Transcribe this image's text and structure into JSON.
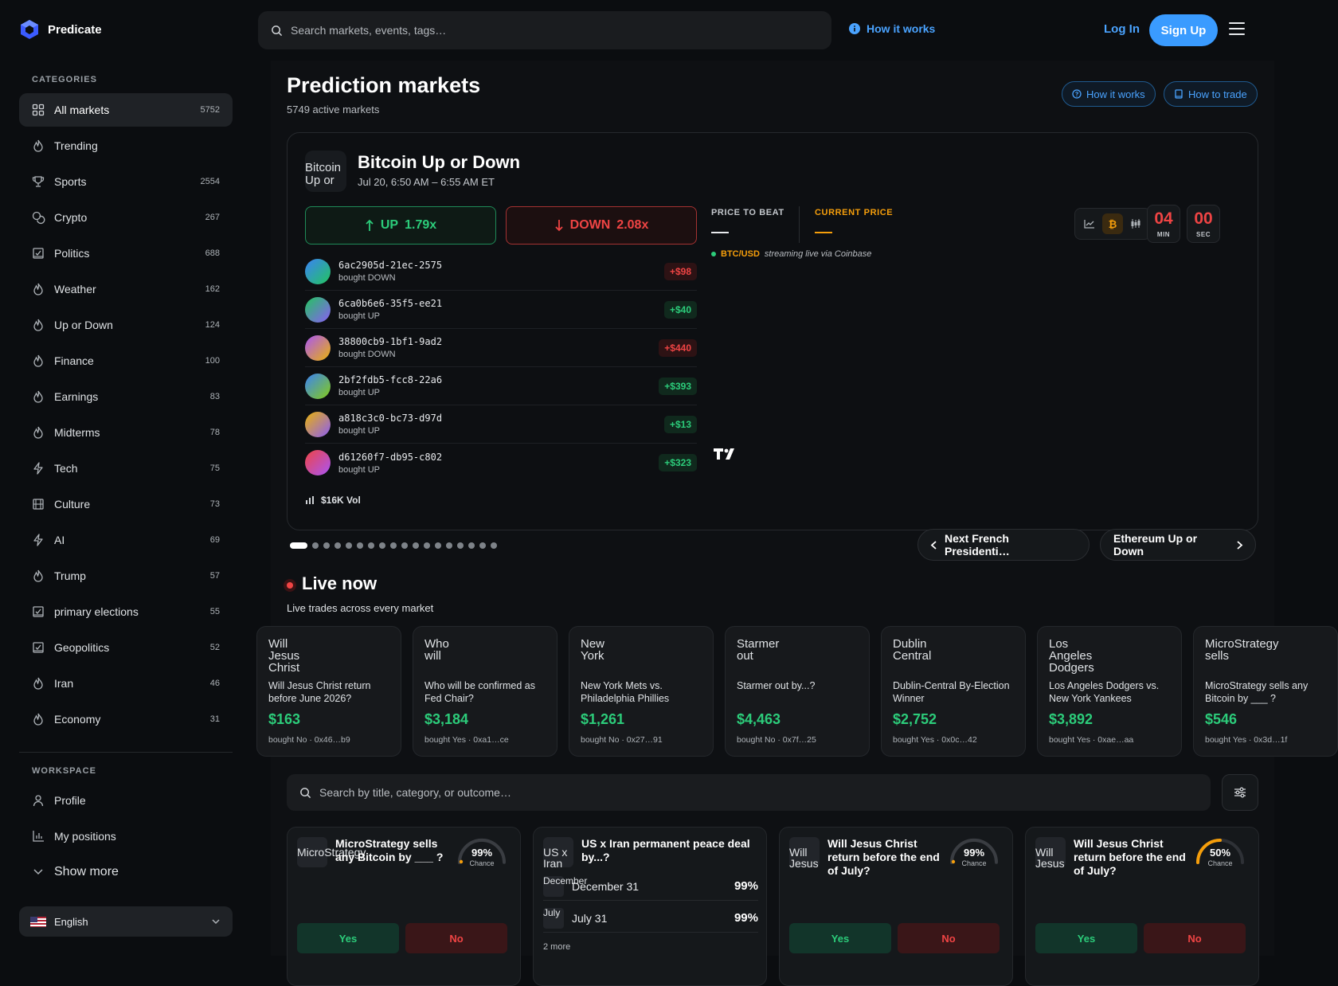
{
  "header": {
    "brand": "Predicate",
    "search_placeholder": "Search markets, events, tags…",
    "how_it_works": "How it works",
    "log_in": "Log In",
    "sign_up": "Sign Up"
  },
  "sidebar": {
    "categories_heading": "CATEGORIES",
    "items": [
      {
        "label": "All markets",
        "count": "5752",
        "icon": "grid-icon"
      },
      {
        "label": "Trending",
        "count": "",
        "icon": "flame-icon"
      },
      {
        "label": "Sports",
        "count": "2554",
        "icon": "trophy-icon"
      },
      {
        "label": "Crypto",
        "count": "267",
        "icon": "coins-icon"
      },
      {
        "label": "Politics",
        "count": "688",
        "icon": "ballot-icon"
      },
      {
        "label": "Weather",
        "count": "162",
        "icon": "flame-icon"
      },
      {
        "label": "Up or Down",
        "count": "124",
        "icon": "flame-icon"
      },
      {
        "label": "Finance",
        "count": "100",
        "icon": "flame-icon"
      },
      {
        "label": "Earnings",
        "count": "83",
        "icon": "flame-icon"
      },
      {
        "label": "Midterms",
        "count": "78",
        "icon": "flame-icon"
      },
      {
        "label": "Tech",
        "count": "75",
        "icon": "bolt-icon"
      },
      {
        "label": "Culture",
        "count": "73",
        "icon": "film-icon"
      },
      {
        "label": "AI",
        "count": "69",
        "icon": "bolt-icon"
      },
      {
        "label": "Trump",
        "count": "57",
        "icon": "flame-icon"
      },
      {
        "label": "primary elections",
        "count": "55",
        "icon": "ballot-icon"
      },
      {
        "label": "Geopolitics",
        "count": "52",
        "icon": "ballot-icon"
      },
      {
        "label": "Iran",
        "count": "46",
        "icon": "flame-icon"
      },
      {
        "label": "Economy",
        "count": "31",
        "icon": "flame-icon"
      }
    ],
    "workspace_heading": "WORKSPACE",
    "workspace": [
      {
        "label": "Profile",
        "icon": "user-icon"
      },
      {
        "label": "My positions",
        "icon": "bar-chart-icon"
      },
      {
        "label": "Show more",
        "icon": "chevron-down-icon"
      }
    ],
    "language": "English"
  },
  "main": {
    "title": "Prediction markets",
    "subtitle": "5749 active markets",
    "how_it_works": "How it works",
    "how_to_trade": "How to trade"
  },
  "feature": {
    "image_alt": "Bitcoin Up or",
    "title": "Bitcoin Up or Down",
    "date": "Jul 20, 6:50 AM – 6:55 AM ET",
    "up_label": "UP",
    "up_odds": "1.79x",
    "down_label": "DOWN",
    "down_odds": "2.08x",
    "trades": [
      {
        "id": "6ac2905d-21ec-2575",
        "action": "bought DOWN",
        "amount": "+$98",
        "side": "neg",
        "colors": [
          "#3b82f6",
          "#22c55e"
        ]
      },
      {
        "id": "6ca0b6e6-35f5-ee21",
        "action": "bought UP",
        "amount": "+$40",
        "side": "pos",
        "colors": [
          "#22c55e",
          "#8b5cf6"
        ]
      },
      {
        "id": "38800cb9-1bf1-9ad2",
        "action": "bought DOWN",
        "amount": "+$440",
        "side": "neg",
        "colors": [
          "#a855f7",
          "#eab308"
        ]
      },
      {
        "id": "2bf2fdb5-fcc8-22a6",
        "action": "bought UP",
        "amount": "+$393",
        "side": "pos",
        "colors": [
          "#3b82f6",
          "#84cc16"
        ]
      },
      {
        "id": "a818c3c0-bc73-d97d",
        "action": "bought UP",
        "amount": "+$13",
        "side": "pos",
        "colors": [
          "#eab308",
          "#8b5cf6"
        ]
      },
      {
        "id": "d61260f7-db95-c802",
        "action": "bought UP",
        "amount": "+$323",
        "side": "pos",
        "colors": [
          "#ef4444",
          "#a855f7"
        ]
      }
    ],
    "volume": "$16K Vol",
    "price_to_beat_label": "PRICE TO BEAT",
    "current_price_label": "CURRENT PRICE",
    "pair": "BTC/USD",
    "stream_note": "streaming live via Coinbase",
    "countdown_min": "04",
    "countdown_min_label": "MIN",
    "countdown_sec": "00",
    "countdown_sec_label": "SEC"
  },
  "carousel": {
    "dot_count": 18,
    "active_dot": 0,
    "prev_label": "Next French Presidenti…",
    "next_label": "Ethereum Up or Down"
  },
  "live": {
    "title": "Live now",
    "subtitle": "Live trades across every market",
    "cards": [
      {
        "img": "Will Jesus Christ",
        "title": "Will Jesus Christ return before June 2026?",
        "amount": "$163",
        "meta": "bought No · 0x46…b9"
      },
      {
        "img": "Who will",
        "title": "Who will be confirmed as Fed Chair?",
        "amount": "$3,184",
        "meta": "bought Yes · 0xa1…ce"
      },
      {
        "img": "New York",
        "title": "New York Mets vs. Philadelphia Phillies",
        "amount": "$1,261",
        "meta": "bought No · 0x27…91"
      },
      {
        "img": "Starmer out",
        "title": "Starmer out by...?",
        "amount": "$4,463",
        "meta": "bought No · 0x7f…25"
      },
      {
        "img": "Dublin Central",
        "title": "Dublin-Central By-Election Winner",
        "amount": "$2,752",
        "meta": "bought Yes · 0x0c…42"
      },
      {
        "img": "Los Angeles Dodgers",
        "title": "Los Angeles Dodgers vs. New York Yankees",
        "amount": "$3,892",
        "meta": "bought Yes · 0xae…aa"
      },
      {
        "img": "MicroStrategy sells",
        "title": "MicroStrategy sells any Bitcoin by ___ ?",
        "amount": "$546",
        "meta": "bought Yes · 0x3d…1f"
      }
    ]
  },
  "market_search_placeholder": "Search by title, category, or outcome…",
  "markets": [
    {
      "img": "MicroStrategy",
      "title": "MicroStrategy sells any Bitcoin by ___ ?",
      "chance": 99,
      "chance_text": "99%",
      "chance_label": "Chance",
      "yes": "Yes",
      "no": "No"
    },
    {
      "img": "US x Iran",
      "title": "US x Iran permanent peace deal by...?",
      "outcomes": [
        {
          "img": "December",
          "label": "December 31",
          "value": "99%"
        },
        {
          "img": "July",
          "label": "July 31",
          "value": "99%"
        }
      ],
      "more": "2 more"
    },
    {
      "img": "Will Jesus",
      "title": "Will Jesus Christ return before the end of July?",
      "chance": 99,
      "chance_text": "99%",
      "chance_label": "Chance",
      "yes": "Yes",
      "no": "No"
    },
    {
      "img": "Will Jesus",
      "title": "Will Jesus Christ return before the end of July?",
      "chance": 50,
      "chance_text": "50%",
      "chance_label": "Chance",
      "yes": "Yes",
      "no": "No"
    }
  ]
}
